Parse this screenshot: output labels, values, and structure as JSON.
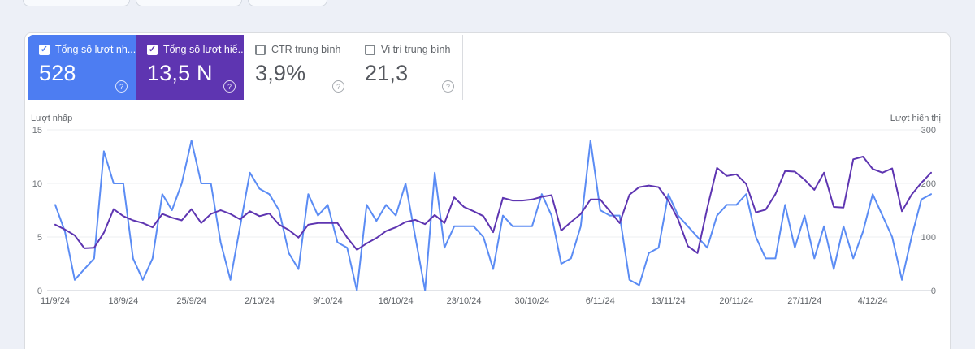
{
  "cards": [
    {
      "label": "Tổng số lượt nh...",
      "value": "528",
      "checked": true,
      "color": "#4d7df2",
      "help": "?"
    },
    {
      "label": "Tổng số lượt hiể...",
      "value": "13,5 N",
      "checked": true,
      "color": "#5e35b1",
      "help": "?"
    },
    {
      "label": "CTR trung bình",
      "value": "3,9%",
      "checked": false,
      "color": null,
      "help": "?"
    },
    {
      "label": "Vị trí trung bình",
      "value": "21,3",
      "checked": false,
      "color": null,
      "help": "?"
    }
  ],
  "chart_data": {
    "type": "line",
    "x_start_date": "11/9/24",
    "x_interval": "daily",
    "x_tick_labels": [
      "11/9/24",
      "18/9/24",
      "25/9/24",
      "2/10/24",
      "9/10/24",
      "16/10/24",
      "23/10/24",
      "30/10/24",
      "6/11/24",
      "13/11/24",
      "20/11/24",
      "27/11/24",
      "4/12/24"
    ],
    "left_axis": {
      "title": "Lượt nhấp",
      "range": [
        0,
        15
      ],
      "ticks": [
        0,
        5,
        10,
        15
      ]
    },
    "right_axis": {
      "title": "Lượt hiển thị",
      "range": [
        0,
        300
      ],
      "ticks": [
        0,
        100,
        200,
        300
      ]
    },
    "grid": "horizontal",
    "legend_position": "none",
    "series": [
      {
        "name": "Lượt nhấp",
        "axis": "left",
        "color": "#5b8cf4",
        "values": [
          8,
          5.5,
          1,
          2,
          3,
          13,
          10,
          10,
          3,
          1,
          3,
          9,
          7.5,
          10,
          14,
          10,
          10,
          4.5,
          1,
          6,
          11,
          9.5,
          9,
          7.5,
          3.5,
          2,
          9,
          7,
          8,
          4.5,
          4,
          0,
          8,
          6.5,
          8,
          7,
          10,
          5,
          0,
          11,
          4,
          6,
          6,
          6,
          5,
          2,
          7,
          6,
          6,
          6,
          9,
          7,
          2.5,
          3,
          6,
          14,
          7.5,
          7,
          7,
          1,
          0.5,
          3.5,
          4,
          9,
          7,
          6,
          5,
          4,
          7,
          8,
          8,
          9,
          5,
          3,
          3,
          8,
          4,
          7,
          3,
          6,
          2,
          6,
          3,
          5.5,
          9,
          7,
          5,
          1,
          5,
          8.5,
          9
        ]
      },
      {
        "name": "Lượt hiển thị",
        "axis": "right",
        "color": "#5e35b1",
        "values": [
          123,
          114,
          103,
          79,
          80,
          108,
          152,
          139,
          131,
          126,
          118,
          143,
          136,
          131,
          152,
          126,
          143,
          150,
          143,
          133,
          148,
          139,
          144,
          123,
          113,
          99,
          123,
          126,
          126,
          126,
          99,
          76,
          88,
          98,
          111,
          118,
          128,
          132,
          124,
          141,
          126,
          174,
          156,
          148,
          139,
          109,
          173,
          168,
          168,
          170,
          175,
          178,
          112,
          128,
          143,
          170,
          170,
          148,
          126,
          179,
          193,
          196,
          193,
          168,
          133,
          83,
          70,
          154,
          229,
          214,
          217,
          199,
          146,
          151,
          180,
          223,
          222,
          207,
          188,
          220,
          156,
          155,
          245,
          250,
          227,
          220,
          228,
          148,
          179,
          201,
          220
        ]
      }
    ]
  }
}
